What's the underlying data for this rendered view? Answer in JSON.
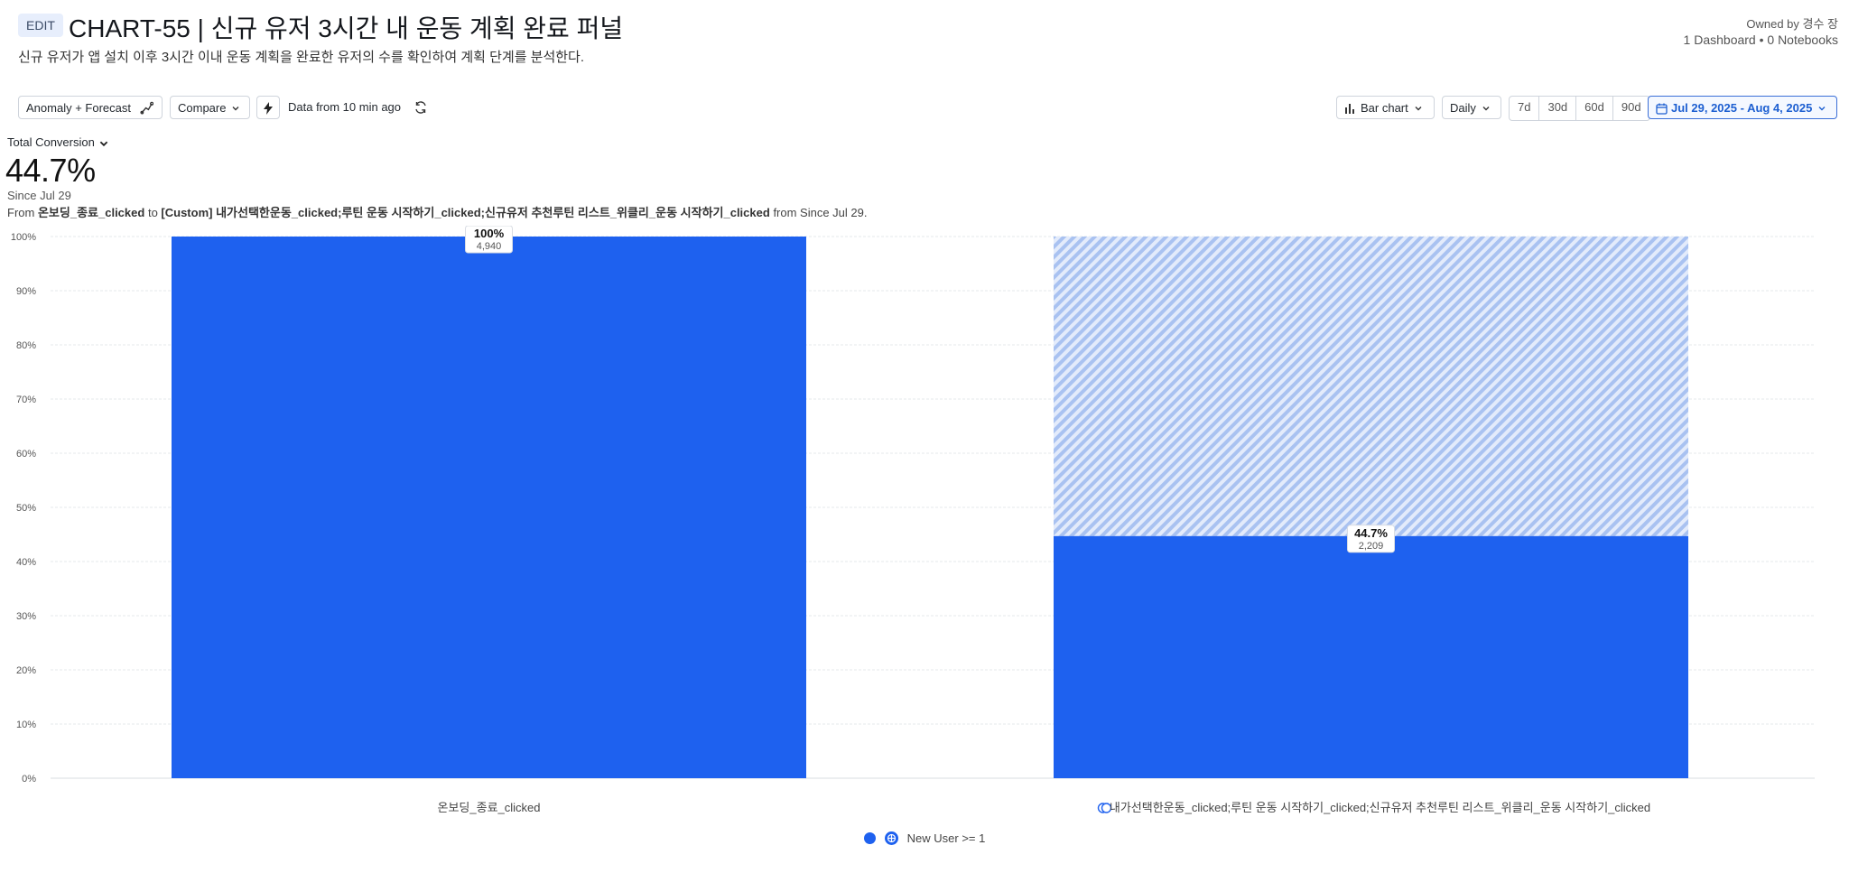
{
  "header": {
    "badge": "EDIT",
    "title": "CHART-55 | 신규 유저 3시간 내 운동 계획 완료 퍼널",
    "subtitle": "신규 유저가 앱 설치 이후 3시간 이내 운동 계획을 완료한 유저의 수를 확인하여 계획 단계를 분석한다.",
    "owner": "Owned by 경수 장",
    "stats": "1 Dashboard • 0 Notebooks"
  },
  "toolbar": {
    "anomaly_label": "Anomaly + Forecast",
    "compare_label": "Compare",
    "data_freshness": "Data from 10 min ago",
    "chart_type_label": "Bar chart",
    "interval_label": "Daily",
    "ranges": [
      "7d",
      "30d",
      "60d",
      "90d"
    ],
    "date_range": "Jul 29, 2025 - Aug 4, 2025"
  },
  "metric": {
    "selector": "Total Conversion",
    "value": "44.7%",
    "since": "Since Jul 29",
    "from_prefix": "From",
    "from_event": "온보딩_종료_clicked",
    "to_word": "to",
    "to_event": "[Custom] 내가선택한운동_clicked;루틴 운동 시작하기_clicked;신규유저 추천루틴 리스트_위클리_운동 시작하기_clicked",
    "from_suffix": "from Since Jul 29."
  },
  "legend": {
    "segment": "New User >= 1"
  },
  "colors": {
    "bar": "#1e61ef",
    "dropoff": "#c4d6f7",
    "accent": "#1d5fd1"
  },
  "chart_data": {
    "type": "bar",
    "categories": [
      "온보딩_종료_clicked",
      "내가선택한운동_clicked;루틴 운동 시작하기_clicked;신규유저 추천루틴 리스트_위클리_운동 시작하기_clicked"
    ],
    "series": [
      {
        "name": "New User >= 1",
        "values": [
          100,
          44.7
        ],
        "counts": [
          "4,940",
          "2,209"
        ]
      }
    ],
    "value_labels": [
      "100%",
      "44.7%"
    ],
    "y_ticks": [
      "0%",
      "10%",
      "20%",
      "30%",
      "40%",
      "50%",
      "60%",
      "70%",
      "80%",
      "90%",
      "100%"
    ],
    "ylim": [
      0,
      100
    ],
    "grid": true,
    "dropoff_shown": true,
    "legend_position": "bottom"
  }
}
